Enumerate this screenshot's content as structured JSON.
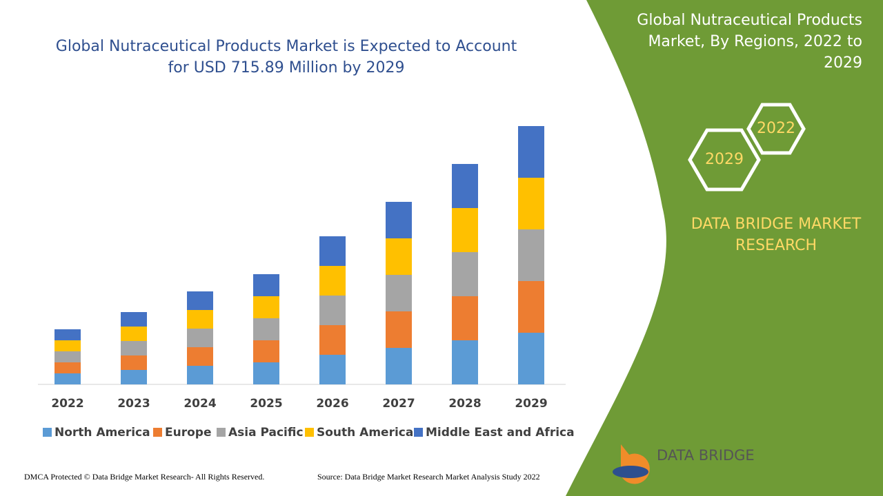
{
  "chart_data": {
    "type": "stacked_bar",
    "title": "Global Nutraceutical Products Market is Expected to Account for USD 715.89 Million by 2029",
    "categories": [
      "2022",
      "2023",
      "2024",
      "2025",
      "2026",
      "2027",
      "2028",
      "2029"
    ],
    "series": [
      {
        "name": "North America",
        "color": "#5b9bd5",
        "values": [
          16,
          21,
          27,
          32,
          43,
          53,
          64,
          75
        ]
      },
      {
        "name": "Europe",
        "color": "#ed7d31",
        "values": [
          16,
          21,
          27,
          32,
          43,
          53,
          64,
          75
        ]
      },
      {
        "name": "Asia Pacific",
        "color": "#a5a5a5",
        "values": [
          16,
          21,
          27,
          32,
          43,
          53,
          64,
          75
        ]
      },
      {
        "name": "South America",
        "color": "#ffc000",
        "values": [
          16,
          21,
          27,
          32,
          43,
          53,
          64,
          75
        ]
      },
      {
        "name": "Middle East and Africa",
        "color": "#4472c4",
        "values": [
          16,
          21,
          27,
          32,
          43,
          53,
          64,
          75
        ]
      }
    ],
    "ylim": [
      0,
      400
    ],
    "legend": "bottom"
  },
  "panel": {
    "title": "Global Nutraceutical Products Market, By Regions, 2022 to 2029",
    "hex_years": [
      "2022",
      "2029"
    ],
    "brand": "DATA BRIDGE MARKET RESEARCH",
    "logo": "DATA BRIDGE"
  },
  "footer": {
    "copyright": "DMCA Protected © Data Bridge Market Research- All Rights Reserved.",
    "source": "Source: Data Bridge Market Research Market Analysis Study 2022"
  }
}
